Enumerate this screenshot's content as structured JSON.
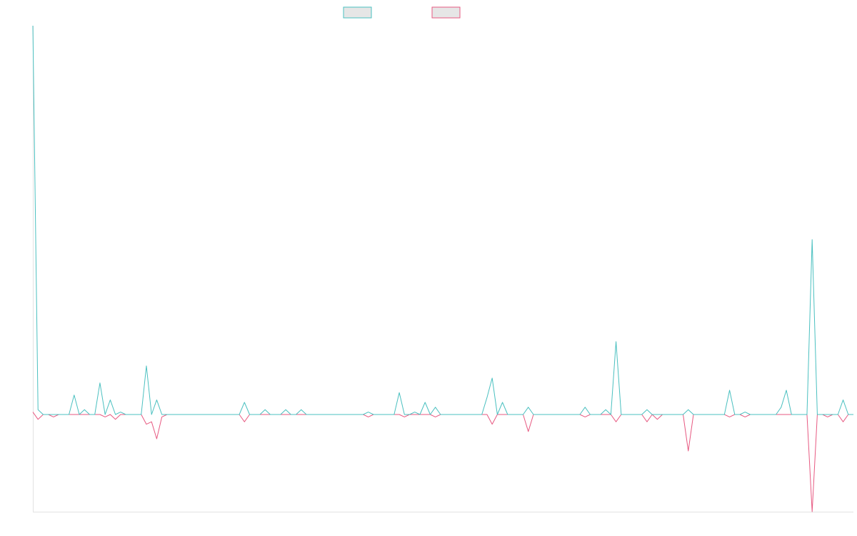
{
  "chart_data": {
    "type": "line",
    "title": "",
    "xlabel": "",
    "ylabel": "",
    "grid": false,
    "legend_position": "top",
    "x_count": 160,
    "ylim": [
      -40,
      160
    ],
    "series": [
      {
        "color": "#4BC0C0",
        "legend_fill": "#e6e6e6",
        "points": [
          [
            0,
            160
          ],
          [
            1,
            2
          ],
          [
            2,
            0
          ],
          [
            3,
            0
          ],
          [
            4,
            0
          ],
          [
            5,
            0
          ],
          [
            6,
            0
          ],
          [
            7,
            0
          ],
          [
            8,
            8
          ],
          [
            9,
            0
          ],
          [
            10,
            2
          ],
          [
            11,
            0
          ],
          [
            12,
            0
          ],
          [
            13,
            13
          ],
          [
            14,
            0
          ],
          [
            15,
            6
          ],
          [
            16,
            0
          ],
          [
            17,
            1
          ],
          [
            18,
            0
          ],
          [
            19,
            0
          ],
          [
            20,
            0
          ],
          [
            21,
            0
          ],
          [
            22,
            20
          ],
          [
            23,
            0
          ],
          [
            24,
            6
          ],
          [
            25,
            0
          ],
          [
            26,
            0
          ],
          [
            40,
            0
          ],
          [
            41,
            5
          ],
          [
            42,
            0
          ],
          [
            44,
            0
          ],
          [
            45,
            2
          ],
          [
            46,
            0
          ],
          [
            48,
            0
          ],
          [
            49,
            2
          ],
          [
            50,
            0
          ],
          [
            51,
            0
          ],
          [
            52,
            2
          ],
          [
            53,
            0
          ],
          [
            64,
            0
          ],
          [
            65,
            1
          ],
          [
            66,
            0
          ],
          [
            70,
            0
          ],
          [
            71,
            9
          ],
          [
            72,
            0
          ],
          [
            73,
            0
          ],
          [
            74,
            1
          ],
          [
            75,
            0
          ],
          [
            76,
            5
          ],
          [
            77,
            0
          ],
          [
            78,
            3
          ],
          [
            79,
            0
          ],
          [
            87,
            0
          ],
          [
            88,
            7
          ],
          [
            89,
            15
          ],
          [
            90,
            0
          ],
          [
            91,
            5
          ],
          [
            92,
            0
          ],
          [
            95,
            0
          ],
          [
            96,
            3
          ],
          [
            97,
            0
          ],
          [
            106,
            0
          ],
          [
            107,
            3
          ],
          [
            108,
            0
          ],
          [
            110,
            0
          ],
          [
            111,
            2
          ],
          [
            112,
            0
          ],
          [
            113,
            30
          ],
          [
            114,
            0
          ],
          [
            115,
            0
          ],
          [
            116,
            0
          ],
          [
            118,
            0
          ],
          [
            119,
            2
          ],
          [
            120,
            0
          ],
          [
            121,
            0
          ],
          [
            122,
            0
          ],
          [
            123,
            0
          ],
          [
            124,
            0
          ],
          [
            125,
            0
          ],
          [
            126,
            0
          ],
          [
            127,
            2
          ],
          [
            128,
            0
          ],
          [
            134,
            0
          ],
          [
            135,
            10
          ],
          [
            136,
            0
          ],
          [
            137,
            0
          ],
          [
            138,
            1
          ],
          [
            139,
            0
          ],
          [
            144,
            0
          ],
          [
            145,
            3
          ],
          [
            146,
            10
          ],
          [
            147,
            0
          ],
          [
            148,
            0
          ],
          [
            150,
            0
          ],
          [
            151,
            72
          ],
          [
            152,
            0
          ],
          [
            153,
            0
          ],
          [
            154,
            0
          ],
          [
            155,
            0
          ],
          [
            156,
            0
          ],
          [
            157,
            6
          ],
          [
            158,
            0
          ],
          [
            159,
            0
          ]
        ]
      },
      {
        "color": "#E75A82",
        "legend_fill": "#e6e6e6",
        "points": [
          [
            0,
            1
          ],
          [
            1,
            -2
          ],
          [
            2,
            0
          ],
          [
            3,
            0
          ],
          [
            4,
            -1
          ],
          [
            5,
            0
          ],
          [
            6,
            0
          ],
          [
            7,
            0
          ],
          [
            8,
            0
          ],
          [
            9,
            0
          ],
          [
            10,
            0
          ],
          [
            11,
            0
          ],
          [
            12,
            0
          ],
          [
            13,
            0
          ],
          [
            14,
            -1
          ],
          [
            15,
            0
          ],
          [
            16,
            -2
          ],
          [
            17,
            0
          ],
          [
            18,
            0
          ],
          [
            19,
            0
          ],
          [
            20,
            0
          ],
          [
            21,
            0
          ],
          [
            22,
            -4
          ],
          [
            23,
            -3
          ],
          [
            24,
            -10
          ],
          [
            25,
            -1
          ],
          [
            26,
            0
          ],
          [
            40,
            0
          ],
          [
            41,
            -3
          ],
          [
            42,
            0
          ],
          [
            44,
            0
          ],
          [
            45,
            0
          ],
          [
            46,
            0
          ],
          [
            48,
            0
          ],
          [
            49,
            0
          ],
          [
            50,
            0
          ],
          [
            51,
            0
          ],
          [
            52,
            0
          ],
          [
            53,
            0
          ],
          [
            64,
            0
          ],
          [
            65,
            -1
          ],
          [
            66,
            0
          ],
          [
            70,
            0
          ],
          [
            71,
            0
          ],
          [
            72,
            -1
          ],
          [
            73,
            0
          ],
          [
            74,
            0
          ],
          [
            75,
            0
          ],
          [
            76,
            0
          ],
          [
            77,
            0
          ],
          [
            78,
            -1
          ],
          [
            79,
            0
          ],
          [
            87,
            0
          ],
          [
            88,
            0
          ],
          [
            89,
            -4
          ],
          [
            90,
            0
          ],
          [
            91,
            0
          ],
          [
            92,
            0
          ],
          [
            95,
            0
          ],
          [
            96,
            -7
          ],
          [
            97,
            0
          ],
          [
            106,
            0
          ],
          [
            107,
            -1
          ],
          [
            108,
            0
          ],
          [
            110,
            0
          ],
          [
            111,
            0
          ],
          [
            112,
            0
          ],
          [
            113,
            -3
          ],
          [
            114,
            0
          ],
          [
            115,
            0
          ],
          [
            116,
            0
          ],
          [
            118,
            0
          ],
          [
            119,
            -3
          ],
          [
            120,
            0
          ],
          [
            121,
            -2
          ],
          [
            122,
            0
          ],
          [
            123,
            0
          ],
          [
            124,
            0
          ],
          [
            125,
            0
          ],
          [
            126,
            0
          ],
          [
            127,
            -15
          ],
          [
            128,
            0
          ],
          [
            134,
            0
          ],
          [
            135,
            -1
          ],
          [
            136,
            0
          ],
          [
            137,
            0
          ],
          [
            138,
            -1
          ],
          [
            139,
            0
          ],
          [
            144,
            0
          ],
          [
            145,
            0
          ],
          [
            146,
            0
          ],
          [
            147,
            0
          ],
          [
            148,
            0
          ],
          [
            150,
            0
          ],
          [
            151,
            -40
          ],
          [
            152,
            0
          ],
          [
            153,
            0
          ],
          [
            154,
            -1
          ],
          [
            155,
            0
          ],
          [
            156,
            0
          ],
          [
            157,
            -3
          ],
          [
            158,
            0
          ],
          [
            159,
            0
          ]
        ]
      }
    ]
  }
}
